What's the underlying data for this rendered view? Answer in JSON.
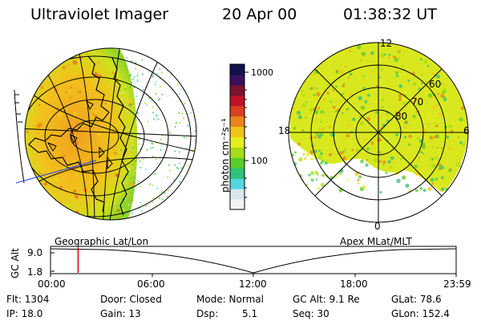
{
  "header": {
    "instrument": "Ultraviolet Imager",
    "date": "20 Apr 00",
    "time": "01:38:32 UT"
  },
  "colorbar": {
    "unit_label": "photon cm⁻²s⁻¹",
    "ticks": [
      "1000",
      "100"
    ],
    "colors": [
      "#f4f4f4",
      "#d8e8e8",
      "#54d6e0",
      "#2ec27a",
      "#58cc2a",
      "#a6dc18",
      "#e4ee1c",
      "#f0c41a",
      "#e8861e",
      "#d8401e",
      "#c01228",
      "#7a1230",
      "#3a1060",
      "#14104a"
    ]
  },
  "polar_plot": {
    "lat_labels": [
      "80",
      "70",
      "60"
    ],
    "mlt_labels": [
      "12",
      "18",
      "6",
      "0"
    ]
  },
  "timeline": {
    "alt_axis_label": "GC Alt",
    "left_title": "Geographic Lat/Lon",
    "right_title": "Apex MLat/MLT",
    "y_ticks": [
      "9.0",
      "1.8"
    ],
    "x_ticks": [
      "00:00",
      "06:00",
      "12:00",
      "18:00",
      "23:59"
    ],
    "current_time_fraction": 0.068
  },
  "info": {
    "flt": "Flt: 1304",
    "ip": "IP: 18.0",
    "door": "Door: Closed",
    "gain": "Gain: 13",
    "mode": "Mode: Normal",
    "dsp_label": "Dsp:",
    "dsp_value": "5.1",
    "gcalt": "GC Alt: 9.1 Re",
    "seq": "Seq: 30",
    "glat": "GLat: 78.6",
    "glon": "GLon: 152.4"
  }
}
